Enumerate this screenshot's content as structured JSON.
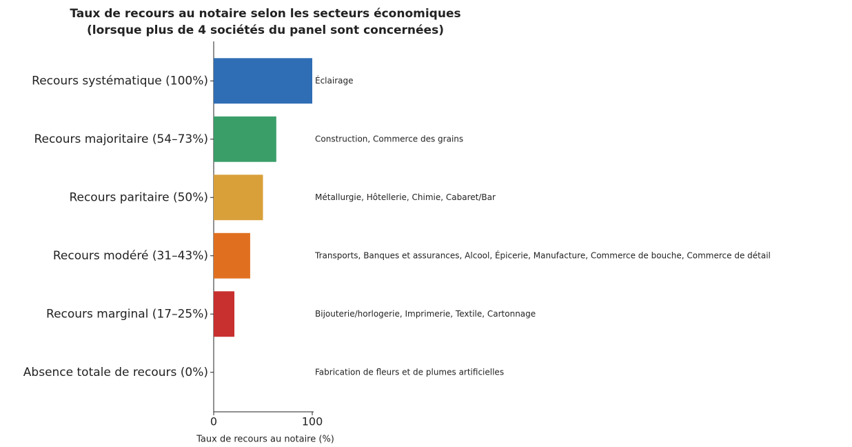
{
  "chart_data": {
    "type": "bar",
    "orientation": "horizontal",
    "title": "Taux de recours au notaire selon les secteurs économiques",
    "subtitle": "(lorsque plus de 4 sociétés du panel sont concernées)",
    "x_label": "Taux de recours au notaire (%)",
    "categories": [
      "Recours systématique (100%)",
      "Recours majoritaire (54–73%)",
      "Recours paritaire (50%)",
      "Recours modéré (31–43%)",
      "Recours marginal (17–25%)",
      "Absence totale de recours (0%)"
    ],
    "values": [
      100,
      63.5,
      50,
      37,
      21,
      0
    ],
    "colors": [
      "#2f6db5",
      "#3a9e68",
      "#d9a03a",
      "#e07020",
      "#c8302f",
      "#7f3f98"
    ],
    "annotations": [
      "Éclairage",
      "Construction, Commerce des grains",
      "Métallurgie, Hôtellerie, Chimie, Cabaret/Bar",
      "Transports, Banques et assurances, Alcool, Épicerie, Manufacture, Commerce de bouche, Commerce de détail",
      "Bijouterie/horlogerie, Imprimerie, Textile, Cartonnage",
      "Fabrication de fleurs et de plumes artificielles"
    ],
    "xlim": [
      0,
      100
    ],
    "xticks": [
      0,
      100
    ]
  }
}
